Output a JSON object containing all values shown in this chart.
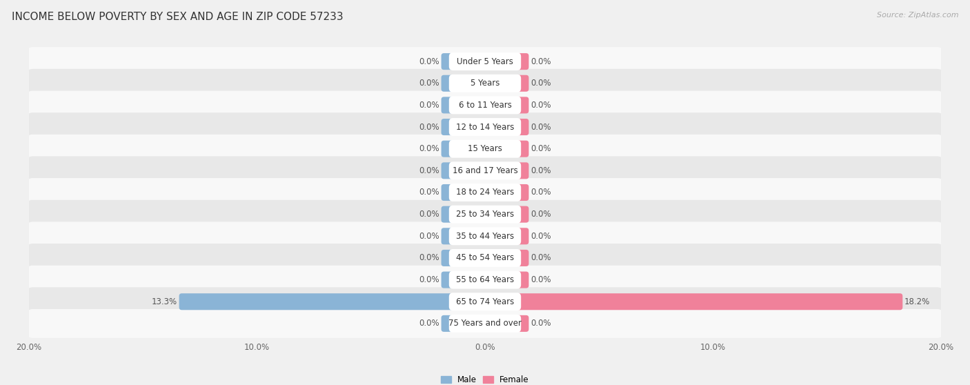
{
  "title": "INCOME BELOW POVERTY BY SEX AND AGE IN ZIP CODE 57233",
  "source": "Source: ZipAtlas.com",
  "categories": [
    "Under 5 Years",
    "5 Years",
    "6 to 11 Years",
    "12 to 14 Years",
    "15 Years",
    "16 and 17 Years",
    "18 to 24 Years",
    "25 to 34 Years",
    "35 to 44 Years",
    "45 to 54 Years",
    "55 to 64 Years",
    "65 to 74 Years",
    "75 Years and over"
  ],
  "male_values": [
    0.0,
    0.0,
    0.0,
    0.0,
    0.0,
    0.0,
    0.0,
    0.0,
    0.0,
    0.0,
    0.0,
    13.3,
    0.0
  ],
  "female_values": [
    0.0,
    0.0,
    0.0,
    0.0,
    0.0,
    0.0,
    0.0,
    0.0,
    0.0,
    0.0,
    0.0,
    18.2,
    0.0
  ],
  "male_color": "#8ab4d6",
  "female_color": "#f0819a",
  "male_label": "Male",
  "female_label": "Female",
  "xlim": 20.0,
  "background_color": "#f0f0f0",
  "row_light_color": "#f8f8f8",
  "row_dark_color": "#e8e8e8",
  "title_fontsize": 11,
  "label_fontsize": 8.5,
  "value_fontsize": 8.5,
  "axis_fontsize": 8.5,
  "source_fontsize": 8,
  "bar_height": 0.52,
  "stub_size": 1.8
}
